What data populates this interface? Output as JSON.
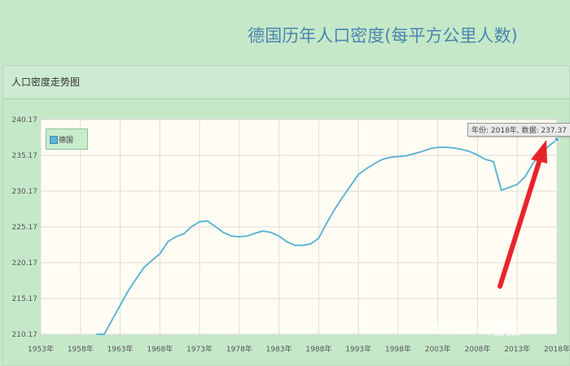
{
  "page": {
    "title": "德国历年人口密度(每平方公里人数)"
  },
  "panel": {
    "header": "人口密度走势图"
  },
  "tooltip": {
    "text": "年份: 2018年, 数据: 237.37"
  },
  "watermark": "Baidu经验",
  "colors": {
    "line": "#63b4d4",
    "arrow": "#e8232b",
    "plot_bg": "#fffdf3"
  },
  "chart_data": {
    "type": "line",
    "title": "",
    "xlabel": "",
    "ylabel": "",
    "legend": "top-left",
    "grid": true,
    "ylim": [
      210.17,
      240.17
    ],
    "yticks": [
      "210.17",
      "215.17",
      "220.17",
      "225.17",
      "230.17",
      "235.17",
      "240.17"
    ],
    "xlim": [
      1953,
      2018
    ],
    "xticks": [
      "1953年",
      "1958年",
      "1963年",
      "1968年",
      "1973年",
      "1978年",
      "1983年",
      "1988年",
      "1993年",
      "1998年",
      "2003年",
      "2008年",
      "2013年",
      "2018年"
    ],
    "series": [
      {
        "name": "德国",
        "x": [
          1960,
          1961,
          1962,
          1963,
          1964,
          1965,
          1966,
          1967,
          1968,
          1969,
          1970,
          1971,
          1972,
          1973,
          1974,
          1975,
          1976,
          1977,
          1978,
          1979,
          1980,
          1981,
          1982,
          1983,
          1984,
          1985,
          1986,
          1987,
          1988,
          1989,
          1990,
          1991,
          1992,
          1993,
          1994,
          1995,
          1996,
          1997,
          1998,
          1999,
          2000,
          2001,
          2002,
          2003,
          2004,
          2005,
          2006,
          2007,
          2008,
          2009,
          2010,
          2011,
          2012,
          2013,
          2014,
          2015,
          2016,
          2017,
          2018
        ],
        "values": [
          209.9,
          210.1,
          212.2,
          214.2,
          216.2,
          217.9,
          219.5,
          220.5,
          221.4,
          223.1,
          223.8,
          224.2,
          225.2,
          225.9,
          226.0,
          225.2,
          224.4,
          223.9,
          223.8,
          223.9,
          224.3,
          224.6,
          224.4,
          223.9,
          223.1,
          222.6,
          222.6,
          222.8,
          223.6,
          225.7,
          227.6,
          229.3,
          230.9,
          232.5,
          233.3,
          234.0,
          234.6,
          234.9,
          235.0,
          235.1,
          235.4,
          235.7,
          236.1,
          236.3,
          236.3,
          236.2,
          236.0,
          235.7,
          235.2,
          234.6,
          234.3,
          230.3,
          230.7,
          231.1,
          232.2,
          234.1,
          235.5,
          236.5,
          237.37
        ]
      }
    ]
  }
}
